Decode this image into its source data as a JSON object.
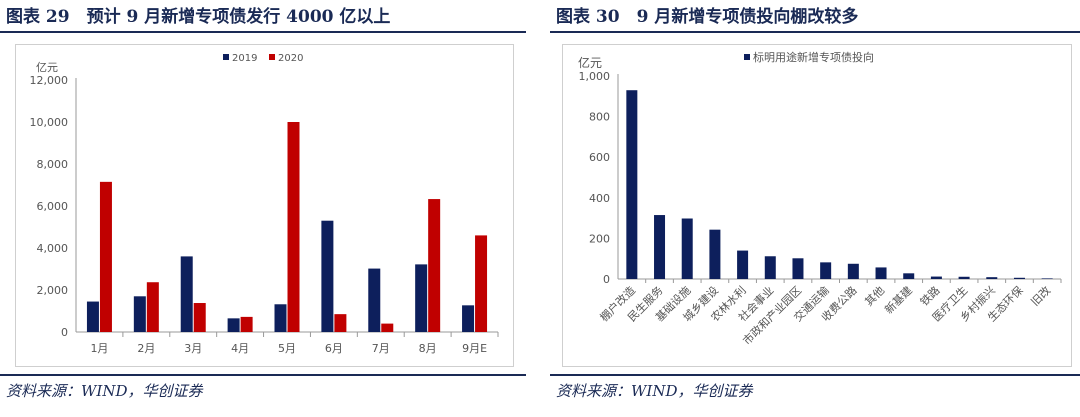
{
  "left": {
    "figure_title": "图表 29　预计 9 月新增专项债发行 4000 亿以上",
    "source": "资料来源：WIND，华创证券",
    "colors": {
      "2019": "#0d1f5c",
      "2020": "#c00000"
    }
  },
  "right": {
    "figure_title": "图表 30　9 月新增专项债投向棚改较多",
    "source": "资料来源：WIND，华创证券",
    "colors": {
      "bar": "#0d1f5c"
    }
  },
  "chart_data": [
    {
      "type": "bar",
      "title": "",
      "ylabel": "亿元",
      "xlabel": "",
      "ylim": [
        0,
        12000
      ],
      "yticks": [
        0,
        2000,
        4000,
        6000,
        8000,
        10000,
        12000
      ],
      "ytick_labels": [
        "0",
        "2,000",
        "4,000",
        "6,000",
        "8,000",
        "10,000",
        "12,000"
      ],
      "categories": [
        "1月",
        "2月",
        "3月",
        "4月",
        "5月",
        "6月",
        "7月",
        "8月",
        "9月E"
      ],
      "series": [
        {
          "name": "2019",
          "values": [
            1450,
            1700,
            3600,
            650,
            1320,
            5300,
            3020,
            3220,
            1270
          ]
        },
        {
          "name": "2020",
          "values": [
            7150,
            2370,
            1380,
            720,
            10000,
            850,
            400,
            6330,
            4600
          ]
        }
      ],
      "legend": "top-center"
    },
    {
      "type": "bar",
      "title": "",
      "ylabel": "亿元",
      "xlabel": "",
      "ylim": [
        0,
        1000
      ],
      "yticks": [
        0,
        200,
        400,
        600,
        800,
        1000
      ],
      "ytick_labels": [
        "0",
        "200",
        "400",
        "600",
        "800",
        "1,000"
      ],
      "categories": [
        "棚户改造",
        "民生服务",
        "基础设施",
        "城乡建设",
        "农林水利",
        "社会事业",
        "市政和产业园区",
        "交通运输",
        "收费公路",
        "其他",
        "新基建",
        "铁路",
        "医疗卫生",
        "乡村振兴",
        "生态环保",
        "旧改"
      ],
      "series": [
        {
          "name": "标明用途新增专项债投向",
          "values": [
            930,
            315,
            298,
            243,
            140,
            112,
            102,
            82,
            75,
            57,
            28,
            12,
            11,
            9,
            6,
            3
          ]
        }
      ],
      "legend": "top-center"
    }
  ]
}
